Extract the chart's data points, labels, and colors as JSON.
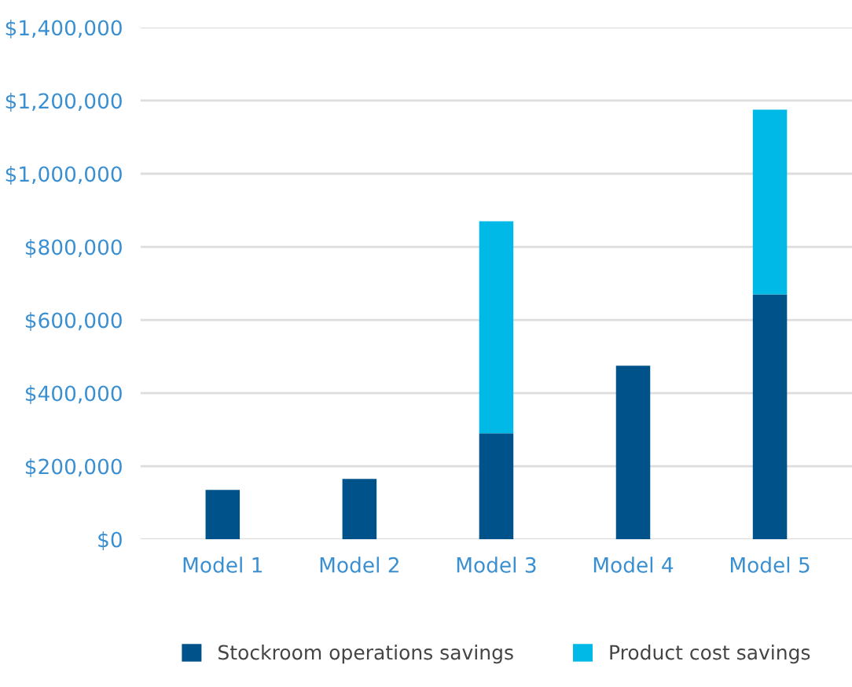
{
  "chart_data": {
    "type": "bar",
    "stacked": true,
    "categories": [
      "Model 1",
      "Model 2",
      "Model 3",
      "Model 4",
      "Model 5"
    ],
    "series": [
      {
        "name": "Stockroom operations savings",
        "color": "#00538a",
        "values": [
          135000,
          165000,
          290000,
          475000,
          670000
        ]
      },
      {
        "name": "Product cost savings",
        "color": "#00b9e6",
        "values": [
          null,
          null,
          580000,
          null,
          505000
        ]
      }
    ],
    "ylim": [
      0,
      1400000
    ],
    "yticks": [
      {
        "value": 0,
        "label": "$0"
      },
      {
        "value": 200000,
        "label": "$200,000"
      },
      {
        "value": 400000,
        "label": "$400,000"
      },
      {
        "value": 600000,
        "label": "$600,000"
      },
      {
        "value": 800000,
        "label": "$800,000"
      },
      {
        "value": 1000000,
        "label": "$1,000,000"
      },
      {
        "value": 1200000,
        "label": "$1,200,000"
      },
      {
        "value": 1400000,
        "label": "$1,400,000"
      }
    ],
    "grid": "y",
    "legend": "bottom"
  }
}
